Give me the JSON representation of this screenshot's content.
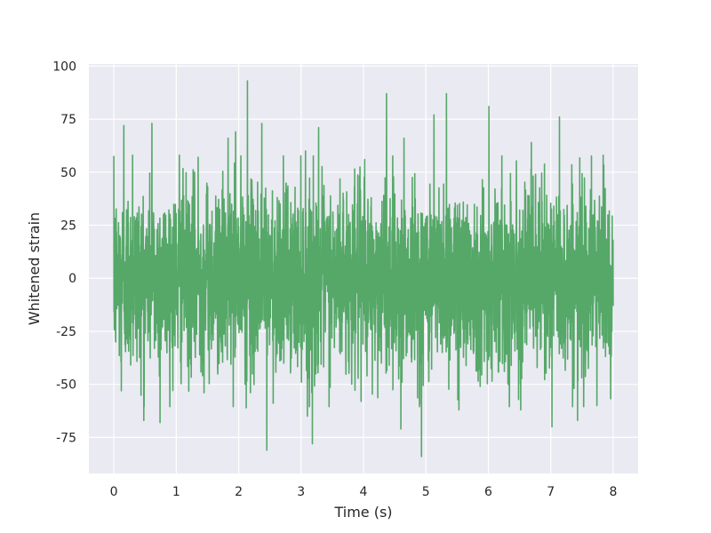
{
  "chart_data": {
    "type": "line",
    "title": "",
    "xlabel": "Time (s)",
    "ylabel": "Whitened strain",
    "xlim": [
      -0.4,
      8.4
    ],
    "ylim": [
      -92,
      101
    ],
    "xticks": [
      0,
      1,
      2,
      3,
      4,
      5,
      6,
      7,
      8
    ],
    "yticks": [
      -75,
      -50,
      -25,
      0,
      25,
      50,
      75,
      100
    ],
    "grid": true,
    "background_color": "#eaeaf2",
    "grid_color": "#ffffff",
    "series": [
      {
        "color": "#55a868",
        "x_start": 0,
        "x_end": 8,
        "envelope": {
          "typical_low": -45,
          "typical_high": 45,
          "max_peak": 93,
          "min_peak": -84
        },
        "peaks": [
          {
            "x": 0.16,
            "y": 72
          },
          {
            "x": 0.3,
            "y": 58
          },
          {
            "x": 0.61,
            "y": 73
          },
          {
            "x": 1.05,
            "y": 58
          },
          {
            "x": 1.35,
            "y": 57
          },
          {
            "x": 1.83,
            "y": 66
          },
          {
            "x": 1.95,
            "y": 69
          },
          {
            "x": 2.14,
            "y": 93
          },
          {
            "x": 2.37,
            "y": 73
          },
          {
            "x": 3.07,
            "y": 60
          },
          {
            "x": 3.28,
            "y": 71
          },
          {
            "x": 4.02,
            "y": 56
          },
          {
            "x": 4.37,
            "y": 87
          },
          {
            "x": 4.65,
            "y": 66
          },
          {
            "x": 5.13,
            "y": 77
          },
          {
            "x": 5.33,
            "y": 87
          },
          {
            "x": 6.01,
            "y": 81
          },
          {
            "x": 6.69,
            "y": 64
          },
          {
            "x": 7.14,
            "y": 76
          },
          {
            "x": 7.84,
            "y": 58
          },
          {
            "x": 0.12,
            "y": -53
          },
          {
            "x": 0.74,
            "y": -68
          },
          {
            "x": 0.48,
            "y": -67
          },
          {
            "x": 2.12,
            "y": -61
          },
          {
            "x": 2.45,
            "y": -81
          },
          {
            "x": 3.18,
            "y": -78
          },
          {
            "x": 3.1,
            "y": -65
          },
          {
            "x": 3.96,
            "y": -58
          },
          {
            "x": 4.6,
            "y": -71
          },
          {
            "x": 4.93,
            "y": -84
          },
          {
            "x": 5.53,
            "y": -62
          },
          {
            "x": 6.52,
            "y": -62
          },
          {
            "x": 7.02,
            "y": -70
          },
          {
            "x": 7.43,
            "y": -67
          },
          {
            "x": 7.74,
            "y": -60
          }
        ]
      }
    ]
  }
}
